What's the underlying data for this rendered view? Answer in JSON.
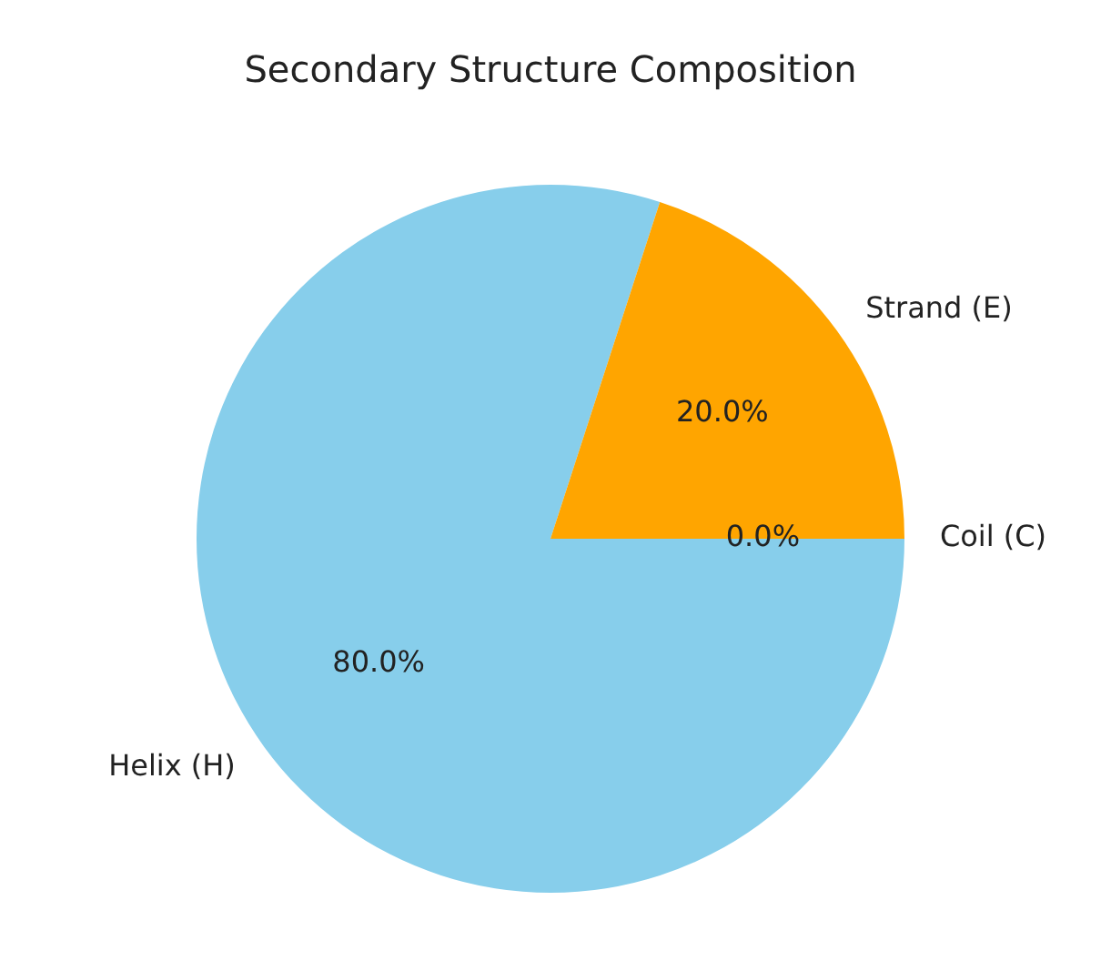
{
  "chart_data": {
    "type": "pie",
    "title": "Secondary Structure Composition",
    "categories": [
      "Helix (H)",
      "Strand (E)",
      "Coil (C)"
    ],
    "values": [
      80,
      20,
      0
    ],
    "value_labels": [
      "80.0%",
      "20.0%",
      "0.0%"
    ],
    "colors": [
      "#87ceeb",
      "#ffa500",
      "#90ee90"
    ],
    "legend": false
  }
}
